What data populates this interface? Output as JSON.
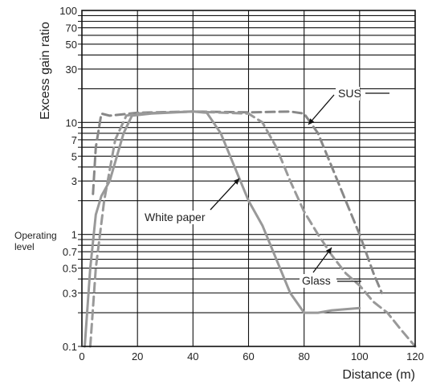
{
  "chart_data": {
    "type": "line",
    "title": "",
    "xlabel": "Distance (m)",
    "ylabel": "Excess gain ratio",
    "yscale": "log",
    "xlim": [
      0,
      120
    ],
    "ylim": [
      0.1,
      100
    ],
    "grid": true,
    "x_ticks": [
      "0",
      "20",
      "40",
      "60",
      "80",
      "100",
      "120"
    ],
    "y_ticks": [
      "0.1",
      "0.3",
      "0.5",
      "0.7",
      "1",
      "3",
      "5",
      "7",
      "10",
      "30",
      "50",
      "70",
      "100"
    ],
    "operating_level_label": [
      "Operating",
      "level"
    ],
    "series": [
      {
        "name": "SUS",
        "style": "dashed",
        "color": "#888888",
        "points": [
          [
            4,
            2.3
          ],
          [
            5,
            6
          ],
          [
            7,
            12
          ],
          [
            10,
            11.5
          ],
          [
            20,
            12.2
          ],
          [
            40,
            12.5
          ],
          [
            60,
            12.3
          ],
          [
            75,
            12.5
          ],
          [
            80,
            12
          ],
          [
            85,
            8
          ],
          [
            90,
            4
          ],
          [
            95,
            2
          ],
          [
            100,
            1
          ],
          [
            105,
            0.45
          ],
          [
            108,
            0.3
          ]
        ]
      },
      {
        "name": "White paper",
        "style": "solid",
        "color": "#999999",
        "points": [
          [
            1,
            0.1
          ],
          [
            3,
            0.5
          ],
          [
            5,
            1.5
          ],
          [
            7,
            2.2
          ],
          [
            10,
            3
          ],
          [
            15,
            8
          ],
          [
            18,
            11.5
          ],
          [
            25,
            12
          ],
          [
            40,
            12.5
          ],
          [
            45,
            12.2
          ],
          [
            50,
            8
          ],
          [
            55,
            4
          ],
          [
            60,
            2
          ],
          [
            65,
            1.2
          ],
          [
            70,
            0.6
          ],
          [
            75,
            0.3
          ],
          [
            80,
            0.2
          ],
          [
            85,
            0.2
          ],
          [
            90,
            0.21
          ],
          [
            100,
            0.22
          ]
        ]
      },
      {
        "name": "Glass",
        "style": "dashed",
        "color": "#999999",
        "points": [
          [
            3,
            0.1
          ],
          [
            5,
            0.5
          ],
          [
            8,
            2
          ],
          [
            12,
            7
          ],
          [
            16,
            11.5
          ],
          [
            20,
            12
          ],
          [
            40,
            12.5
          ],
          [
            60,
            12
          ],
          [
            65,
            10
          ],
          [
            70,
            6
          ],
          [
            75,
            3
          ],
          [
            80,
            1.6
          ],
          [
            85,
            1
          ],
          [
            90,
            0.65
          ],
          [
            95,
            0.45
          ],
          [
            100,
            0.35
          ],
          [
            105,
            0.25
          ],
          [
            110,
            0.2
          ],
          [
            115,
            0.14
          ],
          [
            120,
            0.1
          ]
        ]
      }
    ],
    "annotations": [
      {
        "text": "SUS",
        "series": "SUS"
      },
      {
        "text": "White paper",
        "series": "White paper"
      },
      {
        "text": "Glass",
        "series": "Glass"
      }
    ]
  }
}
